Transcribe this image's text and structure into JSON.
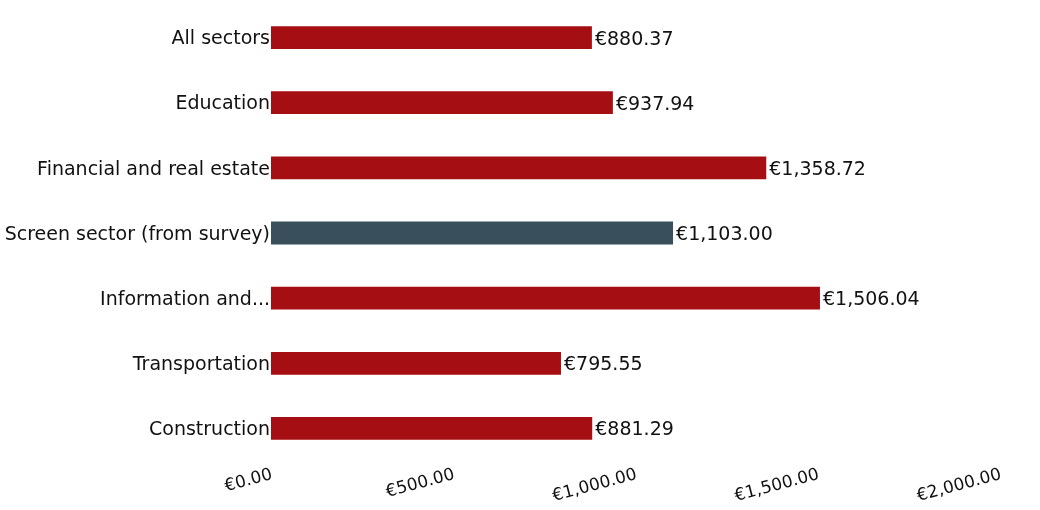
{
  "chart_data": {
    "type": "bar",
    "orientation": "horizontal",
    "categories": [
      "All sectors",
      "Education",
      "Financial and real estate",
      "Screen sector (from survey)",
      "Information and...",
      "Transportation",
      "Construction"
    ],
    "values": [
      880.37,
      937.94,
      1358.72,
      1103.0,
      1506.04,
      795.55,
      881.29
    ],
    "colors": [
      "#a50e12",
      "#a50e12",
      "#a50e12",
      "#3a4f5c",
      "#a50e12",
      "#a50e12",
      "#a50e12"
    ],
    "value_labels": [
      "€880.37",
      "€937.94",
      "€1,358.72",
      "€1,103.00",
      "€1,506.04",
      "€795.55",
      "€881.29"
    ],
    "xlim": [
      0,
      2000
    ],
    "xticks": [
      {
        "value": 0,
        "label": "€0.00"
      },
      {
        "value": 500,
        "label": "€500.00"
      },
      {
        "value": 1000,
        "label": "€1,000.00"
      },
      {
        "value": 1500,
        "label": "€1,500.00"
      },
      {
        "value": 2000,
        "label": "€2,000.00"
      }
    ],
    "data_labels": false
  }
}
